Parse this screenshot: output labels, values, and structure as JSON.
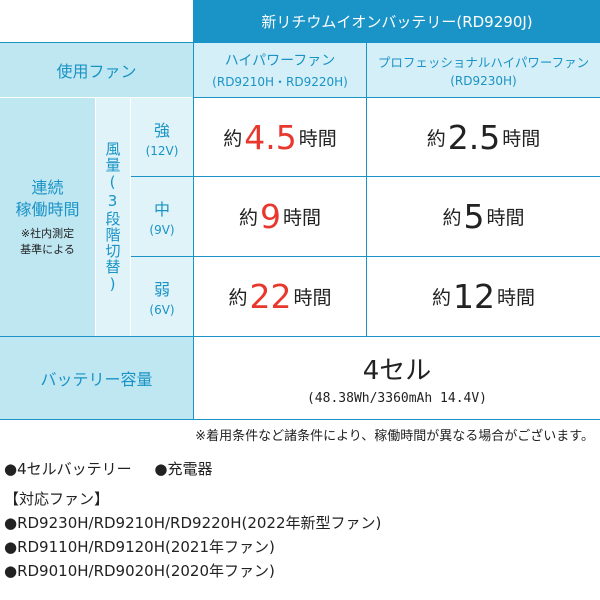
{
  "header": {
    "battery": "新リチウムイオンバッテリー(RD9290J)"
  },
  "columns": {
    "fan_label": "使用ファン",
    "col1_name": "ハイパワーファン",
    "col1_models": "(RD9210H・RD9220H)",
    "col2_name": "プロフェッショナルハイパワーファン",
    "col2_models": "(RD9230H)"
  },
  "left": {
    "runtime_title1": "連続",
    "runtime_title2": "稼働時間",
    "runtime_note1": "※社内測定",
    "runtime_note2": "基準による",
    "airflow_vertical": "風量(3段階切替)"
  },
  "rows": [
    {
      "mode": "強",
      "voltage": "(12V)",
      "c1_prefix": "約",
      "c1_value": "4.5",
      "c1_suffix": "時間",
      "c2_prefix": "約",
      "c2_value": "2.5",
      "c2_suffix": "時間"
    },
    {
      "mode": "中",
      "voltage": "(9V)",
      "c1_prefix": "約",
      "c1_value": "9",
      "c1_suffix": "時間",
      "c2_prefix": "約",
      "c2_value": "5",
      "c2_suffix": "時間"
    },
    {
      "mode": "弱",
      "voltage": "(6V)",
      "c1_prefix": "約",
      "c1_value": "22",
      "c1_suffix": "時間",
      "c2_prefix": "約",
      "c2_value": "12",
      "c2_suffix": "時間"
    }
  ],
  "capacity": {
    "label": "バッテリー容量",
    "value": "4セル",
    "detail": "(48.38Wh/3360mAh 14.4V)"
  },
  "footnote": "※着用条件など諸条件により、稼働時間が異なる場合がございます。",
  "contents": {
    "item1": "●4セルバッテリー",
    "item2": "●充電器"
  },
  "compatible": {
    "title": "【対応ファン】",
    "items": [
      "●RD9230H/RD9210H/RD9220H(2022年新型ファン)",
      "●RD9110H/RD9120H(2021年ファン)",
      "●RD9010H/RD9020H(2020年ファン)"
    ]
  },
  "colors": {
    "accent": "#1a93c6",
    "light": "#bfe7f2",
    "lighter": "#dff3f9",
    "highlight": "#e8382d"
  }
}
